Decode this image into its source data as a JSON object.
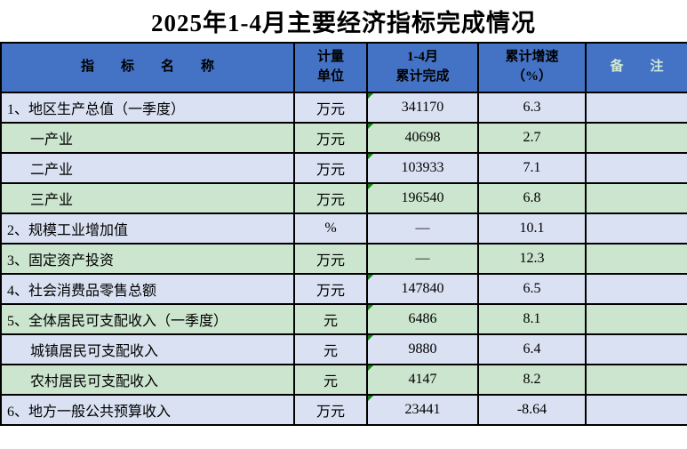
{
  "title": "2025年1-4月主要经济指标完成情况",
  "colors": {
    "header_bg": "#4472C4",
    "row_blue": "#D9E1F2",
    "row_green": "#CBE5CE",
    "marker_green": "#148014",
    "remark_text": "#CFE8D4",
    "grid_border": "#000000"
  },
  "table": {
    "headers": {
      "name": "指　　标　　名　　称",
      "unit": "计量\n单位",
      "value": "1-4月\n累计完成",
      "growth": "累计增速\n（%）",
      "remark": "备　　注"
    },
    "rows": [
      {
        "name": "1、地区生产总值（一季度）",
        "indent": false,
        "unit": "万元",
        "value": "341170",
        "growth": "6.3",
        "marker": true,
        "bg": "blue",
        "remark": ""
      },
      {
        "name": "一产业",
        "indent": true,
        "unit": "万元",
        "value": "40698",
        "growth": "2.7",
        "marker": true,
        "bg": "green",
        "remark": ""
      },
      {
        "name": "二产业",
        "indent": true,
        "unit": "万元",
        "value": "103933",
        "growth": "7.1",
        "marker": true,
        "bg": "blue",
        "remark": ""
      },
      {
        "name": "三产业",
        "indent": true,
        "unit": "万元",
        "value": "196540",
        "growth": "6.8",
        "marker": true,
        "bg": "green",
        "remark": ""
      },
      {
        "name": "2、规模工业增加值",
        "indent": false,
        "unit": "%",
        "value": "—",
        "growth": "10.1",
        "marker": false,
        "bg": "blue",
        "remark": ""
      },
      {
        "name": "3、固定资产投资",
        "indent": false,
        "unit": "万元",
        "value": "—",
        "growth": "12.3",
        "marker": false,
        "bg": "green",
        "remark": ""
      },
      {
        "name": "4、社会消费品零售总额",
        "indent": false,
        "unit": "万元",
        "value": "147840",
        "growth": "6.5",
        "marker": true,
        "bg": "blue",
        "remark": ""
      },
      {
        "name": "5、全体居民可支配收入（一季度）",
        "indent": false,
        "unit": "元",
        "value": "6486",
        "growth": "8.1",
        "marker": true,
        "bg": "green",
        "remark": ""
      },
      {
        "name": "城镇居民可支配收入",
        "indent": true,
        "unit": "元",
        "value": "9880",
        "growth": "6.4",
        "marker": true,
        "bg": "blue",
        "remark": ""
      },
      {
        "name": "农村居民可支配收入",
        "indent": true,
        "unit": "元",
        "value": "4147",
        "growth": "8.2",
        "marker": true,
        "bg": "green",
        "remark": ""
      },
      {
        "name": "6、地方一般公共预算收入",
        "indent": false,
        "unit": "万元",
        "value": "23441",
        "growth": "-8.64",
        "marker": true,
        "bg": "blue",
        "remark": ""
      }
    ]
  }
}
